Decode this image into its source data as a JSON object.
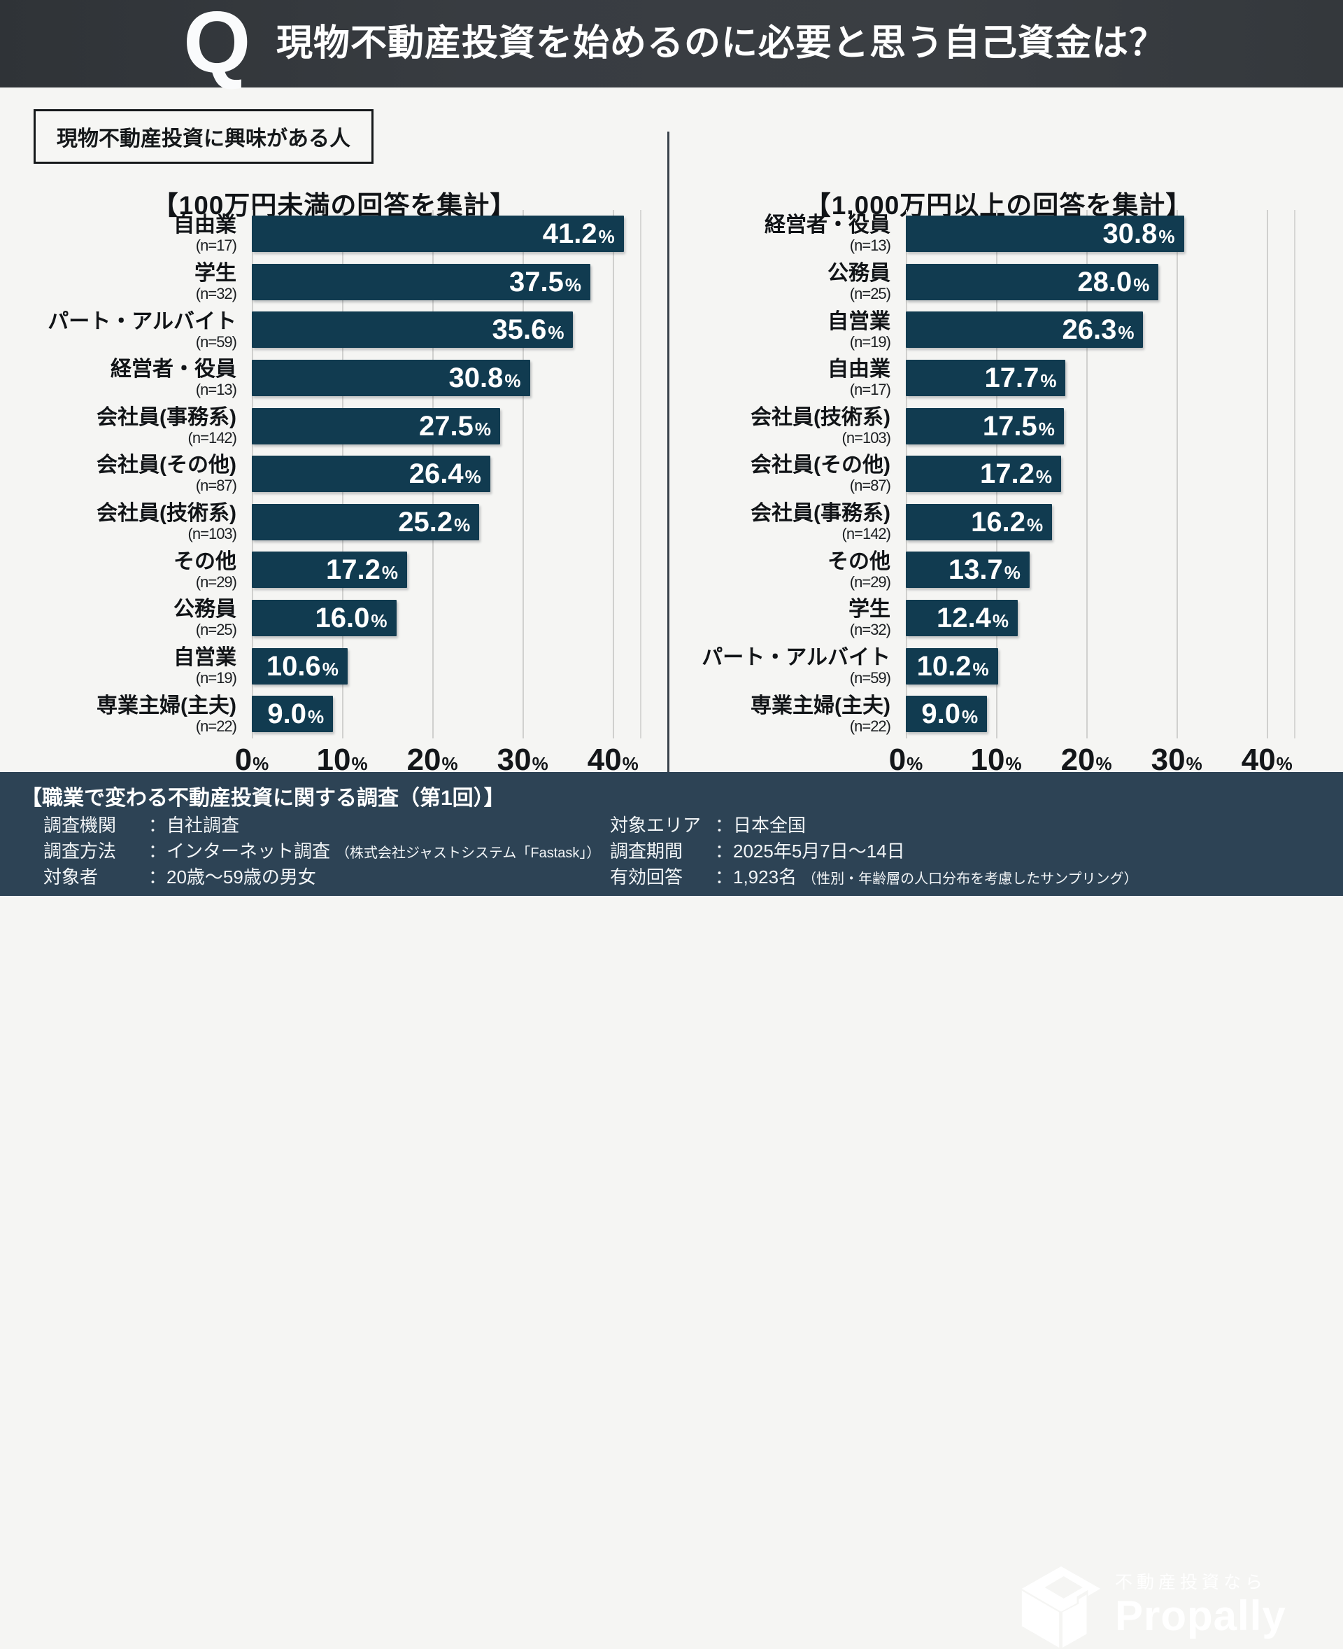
{
  "header": {
    "q_badge": "Q",
    "title": "現物不動産投資を始めるのに必要と思う自己資金は？"
  },
  "filter_label": "現物不動産投資に興味がある人",
  "chart_data": [
    {
      "type": "bar",
      "orientation": "horizontal",
      "title": "【100万円未満の回答を集計】",
      "categories": [
        "自由業",
        "学生",
        "パート・アルバイト",
        "経営者・役員",
        "会社員(事務系)",
        "会社員(その他)",
        "会社員(技術系)",
        "その他",
        "公務員",
        "自営業",
        "専業主婦(主夫)"
      ],
      "sample_sizes": [
        "(n=17)",
        "(n=32)",
        "(n=59)",
        "(n=13)",
        "(n=142)",
        "(n=87)",
        "(n=103)",
        "(n=29)",
        "(n=25)",
        "(n=19)",
        "(n=22)"
      ],
      "values": [
        41.2,
        37.5,
        35.6,
        30.8,
        27.5,
        26.4,
        25.2,
        17.2,
        16.0,
        10.6,
        9.0
      ],
      "value_labels": [
        "41.2",
        "37.5",
        "35.6",
        "30.8",
        "27.5",
        "26.4",
        "25.2",
        "17.2",
        "16.0",
        "10.6",
        "9.0"
      ],
      "unit": "%",
      "xlim": [
        0,
        43
      ],
      "x_ticks": [
        0,
        10,
        20,
        30,
        40
      ],
      "tick_labels": [
        "0",
        "10",
        "20",
        "30",
        "40"
      ],
      "bar_color": "#113b50",
      "grid": true,
      "legend": false
    },
    {
      "type": "bar",
      "orientation": "horizontal",
      "title": "【1,000万円以上の回答を集計】",
      "categories": [
        "経営者・役員",
        "公務員",
        "自営業",
        "自由業",
        "会社員(技術系)",
        "会社員(その他)",
        "会社員(事務系)",
        "その他",
        "学生",
        "パート・アルバイト",
        "専業主婦(主夫)"
      ],
      "sample_sizes": [
        "(n=13)",
        "(n=25)",
        "(n=19)",
        "(n=17)",
        "(n=103)",
        "(n=87)",
        "(n=142)",
        "(n=29)",
        "(n=32)",
        "(n=59)",
        "(n=22)"
      ],
      "values": [
        30.8,
        28.0,
        26.3,
        17.7,
        17.5,
        17.2,
        16.2,
        13.7,
        12.4,
        10.2,
        9.0
      ],
      "value_labels": [
        "30.8",
        "28.0",
        "26.3",
        "17.7",
        "17.5",
        "17.2",
        "16.2",
        "13.7",
        "12.4",
        "10.2",
        "9.0"
      ],
      "unit": "%",
      "xlim": [
        0,
        43
      ],
      "x_ticks": [
        0,
        10,
        20,
        30,
        40
      ],
      "tick_labels": [
        "0",
        "10",
        "20",
        "30",
        "40"
      ],
      "bar_color": "#113b50",
      "grid": true,
      "legend": false
    }
  ],
  "footer": {
    "survey_title": "【職業で変わる不動産投資に関する調査（第1回）】",
    "left_rows": [
      {
        "label": "調査機関",
        "value": "：自社調査",
        "note": ""
      },
      {
        "label": "調査方法",
        "value": "：インターネット調査",
        "note": "（株式会社ジャストシステム「Fastask」）"
      },
      {
        "label": "対象者",
        "value": "：20歳～59歳の男女",
        "note": ""
      }
    ],
    "right_rows": [
      {
        "label": "対象エリア",
        "value": "：日本全国",
        "note": ""
      },
      {
        "label": "調査期間",
        "value": "：2025年5月7日～14日",
        "note": ""
      },
      {
        "label": "有効回答",
        "value": "：1,923名",
        "note": "（性別・年齢層の人口分布を考慮したサンプリング）"
      }
    ],
    "logo": {
      "tagline": "不動産投資なら",
      "brand": "Propally"
    }
  },
  "colors": {
    "bar": "#113b50",
    "header_bg": "#35393e",
    "footer_bg": "#2d4355",
    "page_bg": "#f5f5f3",
    "gridline": "#d0d0ce"
  }
}
